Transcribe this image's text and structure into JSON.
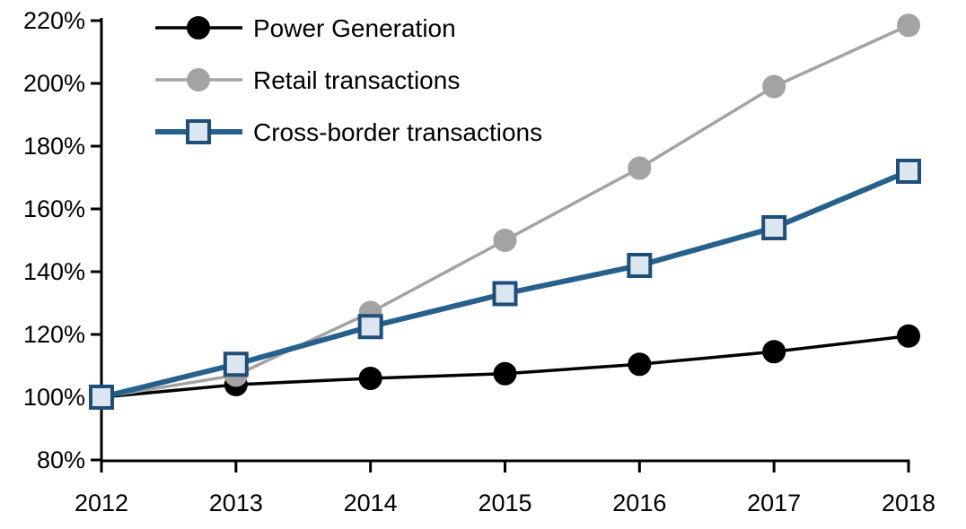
{
  "chart_data": {
    "type": "line",
    "title": "",
    "xlabel": "",
    "ylabel": "",
    "x": [
      "2012",
      "2013",
      "2014",
      "2015",
      "2016",
      "2017",
      "2018"
    ],
    "series": [
      {
        "name": "Power Generation",
        "marker": "circle",
        "line_color": "#000000",
        "marker_fill": "#000000",
        "marker_stroke": "#000000",
        "values": [
          100,
          104,
          106,
          107.5,
          110.5,
          114.5,
          119.5
        ]
      },
      {
        "name": "Retail transactions",
        "marker": "circle",
        "line_color": "#A3A3A3",
        "marker_fill": "#A3A3A3",
        "marker_stroke": "#A3A3A3",
        "values": [
          100,
          107,
          127,
          150,
          173,
          199,
          218.5
        ]
      },
      {
        "name": "Cross-border transactions",
        "marker": "square",
        "line_color": "#26608C",
        "marker_fill": "#DCE6F1",
        "marker_stroke": "#1F4E79",
        "values": [
          100,
          110.5,
          122.5,
          133,
          142,
          154,
          172
        ]
      }
    ],
    "ylim": [
      80,
      220
    ],
    "ytick_step": 20,
    "ytick_labels": [
      "80%",
      "100%",
      "120%",
      "140%",
      "160%",
      "180%",
      "200%",
      "220%"
    ],
    "xtick_labels": [
      "2012",
      "2013",
      "2014",
      "2015",
      "2016",
      "2017",
      "2018"
    ],
    "grid": false,
    "legend_position": "top-left",
    "axis_color": "#000000"
  }
}
